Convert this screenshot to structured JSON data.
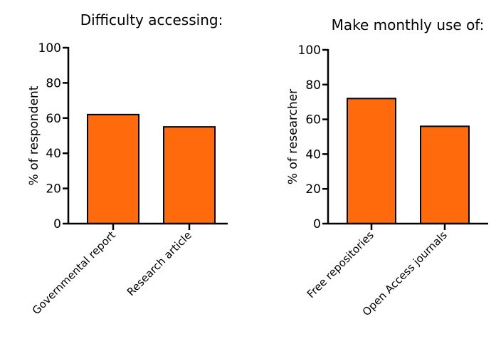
{
  "chart_data": [
    {
      "type": "bar",
      "title": "Difficulty accessing:",
      "ylabel": "% of respondent",
      "categories": [
        "Governmental report",
        "Research article"
      ],
      "values": [
        62,
        55
      ],
      "ylim": [
        0,
        100
      ],
      "yticks": [
        0,
        20,
        40,
        60,
        80,
        100
      ],
      "bar_color": "#ff6a0d",
      "grid": false
    },
    {
      "type": "bar",
      "title": "Make monthly use of:",
      "ylabel": "% of researcher",
      "categories": [
        "Free repositories",
        "Open Access journals"
      ],
      "values": [
        72,
        56
      ],
      "ylim": [
        0,
        100
      ],
      "yticks": [
        0,
        20,
        40,
        60,
        80,
        100
      ],
      "bar_color": "#ff6a0d",
      "grid": false
    }
  ]
}
